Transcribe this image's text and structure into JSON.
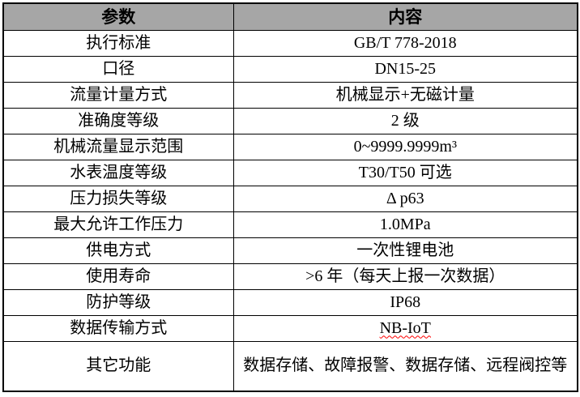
{
  "table": {
    "header": {
      "param": "参数",
      "content": "内容"
    },
    "rows": [
      {
        "param": "执行标准",
        "content": "GB/T 778-2018"
      },
      {
        "param": "口径",
        "content": "DN15-25"
      },
      {
        "param": "流量计量方式",
        "content": "机械显示+无磁计量"
      },
      {
        "param": "准确度等级",
        "content": "2 级"
      },
      {
        "param": "机械流量显示范围",
        "content": "0~9999.9999m³"
      },
      {
        "param": "水表温度等级",
        "content": "T30/T50 可选"
      },
      {
        "param": "压力损失等级",
        "content": "Δ p63"
      },
      {
        "param": "最大允许工作压力",
        "content": "1.0MPa"
      },
      {
        "param": "供电方式",
        "content": "一次性锂电池"
      },
      {
        "param": "使用寿命",
        "content": ">6 年（每天上报一次数据）"
      },
      {
        "param": "防护等级",
        "content": "IP68"
      },
      {
        "param": "数据传输方式",
        "content": "NB-IoT",
        "spell_error": true
      },
      {
        "param": "其它功能",
        "content": "数据存储、故障报警、数据存储、远程阀控等"
      }
    ],
    "colors": {
      "header_background": "#a6a6a6",
      "border": "#000000",
      "text": "#000000",
      "spellcheck_underline": "#ff0000"
    }
  }
}
